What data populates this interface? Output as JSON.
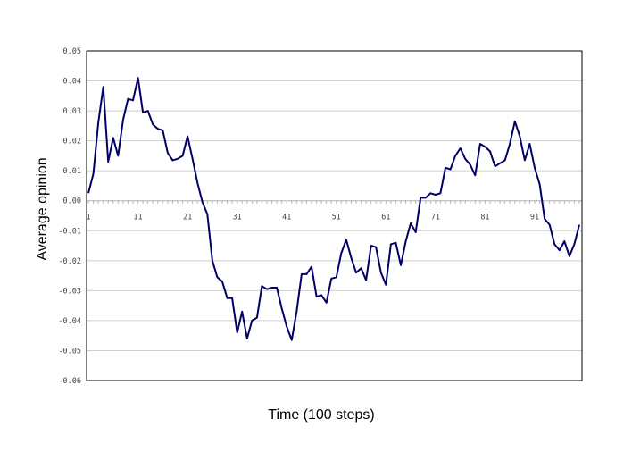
{
  "chart_data": {
    "type": "line",
    "xlabel": "Time (100 steps)",
    "ylabel": "Average opinion",
    "ylim": [
      -0.06,
      0.05
    ],
    "xlim": [
      1,
      100
    ],
    "grid": true,
    "y_ticks": [
      "0.05",
      "0.04",
      "0.03",
      "0.02",
      "0.01",
      "0.00",
      "-0.01",
      "-0.02",
      "-0.03",
      "-0.04",
      "-0.05",
      "-0.06"
    ],
    "x_ticks": [
      "1",
      "11",
      "21",
      "31",
      "41",
      "51",
      "61",
      "71",
      "81",
      "91"
    ],
    "line_color": "#000066",
    "series": [
      {
        "x": [
          1,
          2,
          3,
          4,
          5,
          6,
          7,
          8,
          9,
          10,
          11,
          12,
          13,
          14,
          15,
          16,
          17,
          18,
          19,
          20,
          21,
          22,
          23,
          24,
          25,
          26,
          27,
          28,
          29,
          30,
          31,
          32,
          33,
          34,
          35,
          36,
          37,
          38,
          39,
          40,
          41,
          42,
          43,
          44,
          45,
          46,
          47,
          48,
          49,
          50,
          51,
          52,
          53,
          54,
          55,
          56,
          57,
          58,
          59,
          60,
          61,
          62,
          63,
          64,
          65,
          66,
          67,
          68,
          69,
          70,
          71,
          72,
          73,
          74,
          75,
          76,
          77,
          78,
          79,
          80,
          81,
          82,
          83,
          84,
          85,
          86,
          87,
          88,
          89,
          90,
          91,
          92,
          93,
          94,
          95,
          96,
          97,
          98,
          99,
          100
        ],
        "values": [
          0.0025,
          0.009,
          0.026,
          0.038,
          0.013,
          0.021,
          0.015,
          0.027,
          0.034,
          0.0335,
          0.041,
          0.0295,
          0.03,
          0.0255,
          0.024,
          0.0235,
          0.016,
          0.0135,
          0.014,
          0.015,
          0.0215,
          0.014,
          0.006,
          -0.0005,
          -0.0045,
          -0.02,
          -0.0255,
          -0.027,
          -0.0325,
          -0.0325,
          -0.044,
          -0.037,
          -0.046,
          -0.04,
          -0.039,
          -0.0285,
          -0.0295,
          -0.029,
          -0.029,
          -0.036,
          -0.042,
          -0.0465,
          -0.037,
          -0.0245,
          -0.0245,
          -0.022,
          -0.032,
          -0.0315,
          -0.034,
          -0.026,
          -0.0255,
          -0.0175,
          -0.013,
          -0.019,
          -0.024,
          -0.0225,
          -0.0265,
          -0.015,
          -0.0155,
          -0.024,
          -0.028,
          -0.0145,
          -0.014,
          -0.0215,
          -0.0135,
          -0.0075,
          -0.0105,
          0.001,
          0.001,
          0.0025,
          0.002,
          0.0025,
          0.011,
          0.0105,
          0.015,
          0.0175,
          0.014,
          0.012,
          0.0085,
          0.019,
          0.018,
          0.0165,
          0.0115,
          0.0125,
          0.0135,
          0.019,
          0.0265,
          0.0215,
          0.0135,
          0.019,
          0.011,
          0.0055,
          -0.006,
          -0.008,
          -0.0145,
          -0.0165,
          -0.0135,
          -0.0185,
          -0.0145,
          -0.008
        ]
      }
    ]
  }
}
